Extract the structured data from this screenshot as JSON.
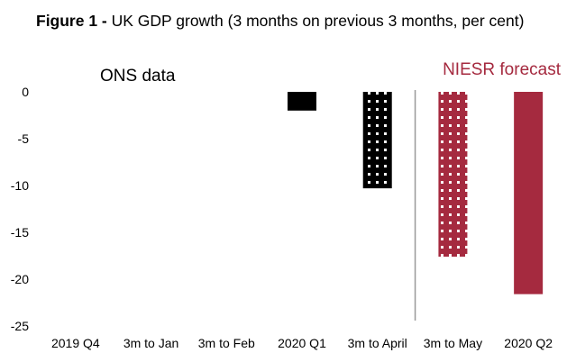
{
  "figure": {
    "label": "Figure 1 - ",
    "title": "UK GDP growth (3 months on previous 3 months, per cent)"
  },
  "colors": {
    "ons": "#000000",
    "niesr": "#a52a3f",
    "dots": "#ffffff",
    "axis": "#999999"
  },
  "chart_data": {
    "type": "bar",
    "title": "UK GDP growth (3 months on previous 3 months, per cent)",
    "categories": [
      "2019 Q4",
      "3m to Jan",
      "3m to Feb",
      "2020 Q1",
      "3m to April",
      "3m to May",
      "2020 Q2"
    ],
    "values": [
      0,
      0,
      0,
      -2,
      -10.3,
      -17.6,
      -21.6
    ],
    "series_type": [
      "ons",
      "ons",
      "ons",
      "ons",
      "ons",
      "niesr",
      "niesr"
    ],
    "pattern": [
      "solid",
      "solid",
      "solid",
      "solid",
      "dotted",
      "dotted",
      "solid"
    ],
    "ylim": [
      -25,
      0
    ],
    "yticks": [
      0,
      -5,
      -10,
      -15,
      -20,
      -25
    ],
    "xlabel": "",
    "ylabel": "",
    "annotations": {
      "ons": "ONS data",
      "niesr": "NIESR forecast"
    }
  }
}
